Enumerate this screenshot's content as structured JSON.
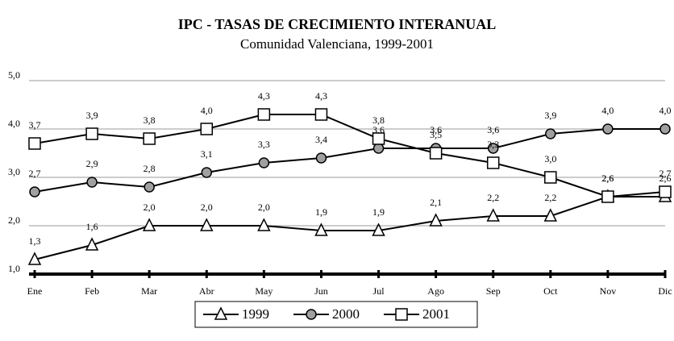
{
  "chart_data": {
    "type": "line",
    "title": "IPC - TASAS DE CRECIMIENTO INTERANUAL",
    "subtitle": "Comunidad Valenciana, 1999-2001",
    "categories": [
      "Ene",
      "Feb",
      "Mar",
      "Abr",
      "May",
      "Jun",
      "Jul",
      "Ago",
      "Sep",
      "Oct",
      "Nov",
      "Dic"
    ],
    "series": [
      {
        "name": "1999",
        "color": "#ffffff",
        "marker": "triangle",
        "values": [
          1.3,
          1.6,
          2.0,
          2.0,
          2.0,
          1.9,
          1.9,
          2.1,
          2.2,
          2.2,
          2.6,
          2.6
        ],
        "value_labels": [
          "1,3",
          "1,6",
          "2,0",
          "2,0",
          "2,0",
          "1,9",
          "1,9",
          "2,1",
          "2,2",
          "2,2",
          "2,6",
          "2,6"
        ]
      },
      {
        "name": "2000",
        "color": "#a0a0a0",
        "marker": "circle",
        "values": [
          2.7,
          2.9,
          2.8,
          3.1,
          3.3,
          3.4,
          3.6,
          3.6,
          3.6,
          3.9,
          4.0,
          4.0
        ],
        "value_labels": [
          "2,7",
          "2,9",
          "2,8",
          "3,1",
          "3,3",
          "3,4",
          "3,6",
          "3,6",
          "3,6",
          "3,9",
          "4,0",
          "4,0"
        ]
      },
      {
        "name": "2001",
        "color": "#ffffff",
        "marker": "square",
        "values": [
          3.7,
          3.9,
          3.8,
          4.0,
          4.3,
          4.3,
          3.8,
          3.5,
          3.3,
          3.0,
          2.6,
          2.7
        ],
        "value_labels": [
          "3,7",
          "3,9",
          "3,8",
          "4,0",
          "4,3",
          "4,3",
          "3,8",
          "3,5",
          "3,3",
          "3,0",
          "2,6",
          "2,7"
        ]
      }
    ],
    "ylim": [
      1,
      5
    ],
    "yticks": [
      {
        "value": 1,
        "label": "1,0"
      },
      {
        "value": 2,
        "label": "2,0"
      },
      {
        "value": 3,
        "label": "3,0"
      },
      {
        "value": 4,
        "label": "4,0"
      },
      {
        "value": 5,
        "label": "5,0"
      }
    ],
    "grid": true
  }
}
